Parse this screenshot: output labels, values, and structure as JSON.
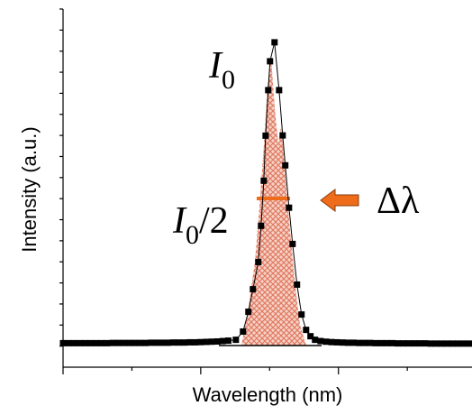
{
  "chart_data": {
    "type": "line",
    "x_label": "Wavelength (nm)",
    "y_label": "Intensity (a.u.)",
    "xlim": [
      0,
      2.97
    ],
    "ylim": [
      -0.1,
      1.6
    ],
    "xticks": [
      0,
      0.5,
      1,
      1.5,
      2,
      2.5
    ],
    "yticks": [
      0,
      0.1,
      0.2,
      0.3,
      0.4,
      0.5,
      0.6,
      0.7,
      0.8,
      0.9,
      1,
      1.1,
      1.2,
      1.3,
      1.4,
      1.5,
      1.6
    ],
    "series": [
      {
        "color": "#000000",
        "x": [
          0,
          0.04,
          0.08,
          0.12,
          0.16,
          0.2,
          0.24,
          0.28,
          0.32,
          0.36,
          0.4,
          0.44,
          0.48,
          0.52,
          0.56,
          0.6,
          0.64,
          0.68,
          0.72,
          0.76,
          0.8,
          0.84,
          0.88,
          0.92,
          0.96,
          1,
          1.04,
          1.08,
          1.12,
          1.16,
          1.2,
          1.255,
          1.307,
          1.346,
          1.379,
          1.418,
          1.438,
          1.458,
          1.471,
          1.49,
          1.503,
          1.536,
          1.569,
          1.595,
          1.614,
          1.641,
          1.667,
          1.699,
          1.732,
          1.765,
          1.797,
          1.83,
          1.87,
          1.91,
          1.95,
          1.99,
          2.03,
          2.07,
          2.11,
          2.15,
          2.19,
          2.23,
          2.27,
          2.31,
          2.35,
          2.39,
          2.43,
          2.47,
          2.51,
          2.55,
          2.59,
          2.63,
          2.67,
          2.71,
          2.75,
          2.79,
          2.83,
          2.87,
          2.91,
          2.95
        ],
        "values": [
          0.014,
          0.014,
          0.014,
          0.014,
          0.014,
          0.014,
          0.014,
          0.014,
          0.014,
          0.015,
          0.015,
          0.015,
          0.015,
          0.015,
          0.015,
          0.015,
          0.016,
          0.016,
          0.016,
          0.016,
          0.017,
          0.017,
          0.017,
          0.018,
          0.018,
          0.019,
          0.02,
          0.021,
          0.022,
          0.024,
          0.026,
          0.03,
          0.069,
          0.163,
          0.27,
          0.399,
          0.571,
          0.785,
          0.999,
          1.215,
          1.352,
          1.442,
          1.215,
          1.0,
          0.858,
          0.657,
          0.485,
          0.292,
          0.15,
          0.077,
          0.047,
          0.03,
          0.024,
          0.021,
          0.019,
          0.018,
          0.017,
          0.016,
          0.016,
          0.015,
          0.015,
          0.015,
          0.014,
          0.014,
          0.014,
          0.014,
          0.013,
          0.013,
          0.013,
          0.013,
          0.013,
          0.013,
          0.012,
          0.012,
          0.012,
          0.012,
          0.012,
          0.012,
          0.012,
          0.012
        ]
      }
    ],
    "annotations": {
      "peak": {
        "main": "I",
        "sub": "0"
      },
      "half": {
        "main": "I",
        "sub": "0",
        "rest": "/2"
      },
      "width": "Δλ"
    }
  }
}
